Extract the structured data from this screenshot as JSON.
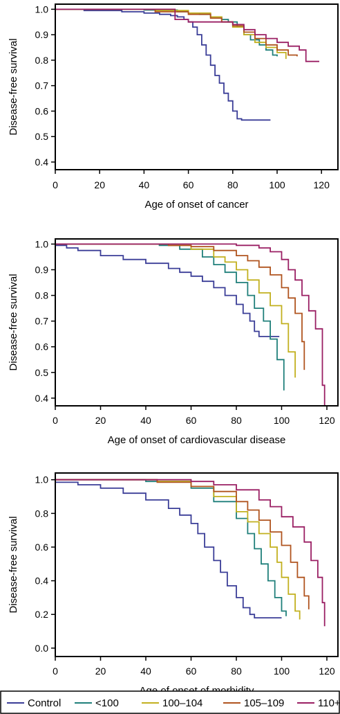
{
  "colors": {
    "Control": "#3a3d97",
    "<100": "#1f7f7a",
    "100–104": "#c2b01f",
    "105–109": "#b0541f",
    "110+": "#9a1f63"
  },
  "legend": [
    "Control",
    "<100",
    "100–104",
    "105–109",
    "110+"
  ],
  "chart_data": [
    {
      "type": "line",
      "step": true,
      "xlabel": "Age of onset of cancer",
      "ylabel": "Disease-free survival",
      "xlim": [
        0,
        125
      ],
      "ylim": [
        0.37,
        1.02
      ],
      "xticks": [
        "0",
        "20",
        "40",
        "60",
        "80",
        "100",
        "120"
      ],
      "yticks": [
        "0.4",
        "0.5",
        "0.6",
        "0.7",
        "0.8",
        "0.9",
        "1.0"
      ],
      "series": [
        {
          "name": "Control",
          "x": [
            0,
            13,
            30,
            40,
            47,
            52,
            55,
            58,
            60,
            62,
            64,
            66,
            68,
            70,
            72,
            74,
            76,
            78,
            80,
            82,
            84,
            90,
            97
          ],
          "y": [
            1.0,
            0.995,
            0.99,
            0.985,
            0.98,
            0.975,
            0.97,
            0.96,
            0.95,
            0.93,
            0.9,
            0.86,
            0.82,
            0.78,
            0.74,
            0.71,
            0.67,
            0.64,
            0.6,
            0.57,
            0.565,
            0.565,
            0.565
          ]
        },
        {
          "name": "<100",
          "x": [
            0,
            40,
            55,
            60,
            65,
            70,
            75,
            78,
            82,
            85,
            88,
            92,
            95,
            98,
            100
          ],
          "y": [
            1.0,
            0.997,
            0.99,
            0.985,
            0.98,
            0.97,
            0.96,
            0.95,
            0.93,
            0.9,
            0.88,
            0.86,
            0.84,
            0.82,
            0.815
          ]
        },
        {
          "name": "100–104",
          "x": [
            0,
            45,
            60,
            70,
            75,
            80,
            85,
            90,
            95,
            100,
            104
          ],
          "y": [
            1.0,
            0.995,
            0.985,
            0.97,
            0.95,
            0.93,
            0.9,
            0.87,
            0.85,
            0.83,
            0.805
          ]
        },
        {
          "name": "105–109",
          "x": [
            0,
            45,
            60,
            70,
            75,
            80,
            85,
            90,
            95,
            100,
            105,
            109
          ],
          "y": [
            1.0,
            0.99,
            0.98,
            0.965,
            0.95,
            0.935,
            0.91,
            0.885,
            0.86,
            0.84,
            0.82,
            0.815
          ]
        },
        {
          "name": "110+",
          "x": [
            0,
            54,
            60,
            74,
            80,
            85,
            90,
            95,
            100,
            105,
            110,
            113,
            119
          ],
          "y": [
            1.0,
            0.96,
            0.95,
            0.95,
            0.94,
            0.92,
            0.9,
            0.885,
            0.87,
            0.855,
            0.84,
            0.795,
            0.795
          ]
        }
      ]
    },
    {
      "type": "line",
      "step": true,
      "xlabel": "Age of onset of cardiovascular disease",
      "ylabel": "Disease-free survival",
      "xlim": [
        0,
        122
      ],
      "ylim": [
        0.37,
        1.02
      ],
      "xticks": [
        "0",
        "20",
        "40",
        "60",
        "80",
        "100",
        "120"
      ],
      "yticks": [
        "0.4",
        "0.5",
        "0.6",
        "0.7",
        "0.8",
        "0.9",
        "1.0"
      ],
      "series": [
        {
          "name": "Control",
          "x": [
            0,
            5,
            10,
            20,
            30,
            40,
            50,
            55,
            60,
            65,
            70,
            75,
            80,
            83,
            86,
            88,
            90,
            95,
            99
          ],
          "y": [
            0.995,
            0.985,
            0.975,
            0.955,
            0.94,
            0.925,
            0.905,
            0.89,
            0.875,
            0.855,
            0.83,
            0.8,
            0.765,
            0.73,
            0.7,
            0.66,
            0.64,
            0.64,
            0.64
          ]
        },
        {
          "name": "<100",
          "x": [
            0,
            46,
            55,
            65,
            70,
            75,
            80,
            85,
            88,
            92,
            95,
            98,
            101
          ],
          "y": [
            1.0,
            0.995,
            0.98,
            0.95,
            0.92,
            0.89,
            0.85,
            0.8,
            0.75,
            0.7,
            0.63,
            0.55,
            0.43
          ]
        },
        {
          "name": "100–104",
          "x": [
            0,
            50,
            60,
            70,
            75,
            80,
            85,
            90,
            95,
            100,
            103,
            106
          ],
          "y": [
            1.0,
            0.995,
            0.98,
            0.95,
            0.93,
            0.9,
            0.86,
            0.81,
            0.76,
            0.69,
            0.58,
            0.48
          ]
        },
        {
          "name": "105–109",
          "x": [
            0,
            50,
            60,
            70,
            80,
            85,
            90,
            95,
            100,
            103,
            106,
            109,
            110
          ],
          "y": [
            1.0,
            0.995,
            0.99,
            0.975,
            0.955,
            0.935,
            0.91,
            0.88,
            0.83,
            0.79,
            0.73,
            0.62,
            0.51
          ]
        },
        {
          "name": "110+",
          "x": [
            0,
            80,
            90,
            95,
            100,
            103,
            106,
            109,
            112,
            115,
            118,
            119
          ],
          "y": [
            1.0,
            0.995,
            0.985,
            0.97,
            0.94,
            0.9,
            0.86,
            0.8,
            0.74,
            0.67,
            0.45,
            0.37
          ]
        }
      ]
    },
    {
      "type": "line",
      "step": true,
      "xlabel": "Age of onset of morbidity",
      "ylabel": "Disease-free survival",
      "xlim": [
        0,
        122
      ],
      "ylim": [
        -0.05,
        1.04
      ],
      "xticks": [
        "0",
        "20",
        "40",
        "60",
        "80",
        "100",
        "120"
      ],
      "yticks": [
        "0.0",
        "0.2",
        "0.4",
        "0.6",
        "0.8",
        "1.0"
      ],
      "series": [
        {
          "name": "Control",
          "x": [
            0,
            10,
            20,
            30,
            40,
            50,
            55,
            60,
            63,
            66,
            70,
            73,
            76,
            80,
            83,
            86,
            88,
            95,
            100
          ],
          "y": [
            0.985,
            0.97,
            0.95,
            0.92,
            0.88,
            0.83,
            0.79,
            0.74,
            0.68,
            0.6,
            0.52,
            0.45,
            0.37,
            0.3,
            0.24,
            0.2,
            0.18,
            0.18,
            0.18
          ]
        },
        {
          "name": "<100",
          "x": [
            0,
            40,
            60,
            70,
            80,
            85,
            88,
            91,
            94,
            97,
            100,
            102
          ],
          "y": [
            1.0,
            0.99,
            0.95,
            0.87,
            0.77,
            0.68,
            0.59,
            0.5,
            0.4,
            0.3,
            0.22,
            0.19
          ]
        },
        {
          "name": "100–104",
          "x": [
            0,
            45,
            60,
            70,
            80,
            85,
            90,
            95,
            98,
            100,
            103,
            106,
            108
          ],
          "y": [
            1.0,
            0.99,
            0.96,
            0.9,
            0.81,
            0.75,
            0.68,
            0.6,
            0.51,
            0.42,
            0.32,
            0.22,
            0.17
          ]
        },
        {
          "name": "105–109",
          "x": [
            0,
            45,
            60,
            70,
            80,
            85,
            90,
            95,
            100,
            104,
            107,
            110,
            112
          ],
          "y": [
            1.0,
            0.985,
            0.96,
            0.93,
            0.87,
            0.82,
            0.76,
            0.69,
            0.61,
            0.51,
            0.42,
            0.31,
            0.23
          ]
        },
        {
          "name": "110+",
          "x": [
            0,
            60,
            70,
            80,
            90,
            95,
            100,
            105,
            110,
            113,
            116,
            118,
            119
          ],
          "y": [
            1.0,
            0.99,
            0.97,
            0.94,
            0.88,
            0.84,
            0.78,
            0.72,
            0.63,
            0.52,
            0.42,
            0.27,
            0.13
          ]
        }
      ]
    }
  ]
}
